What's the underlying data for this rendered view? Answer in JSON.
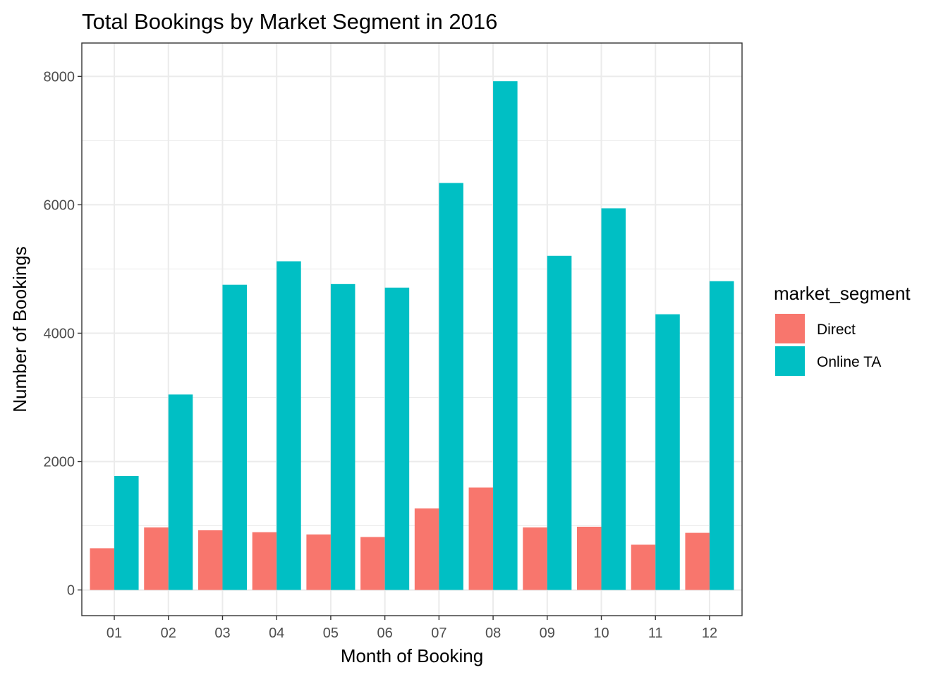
{
  "chart_data": {
    "type": "bar",
    "title": "Total Bookings by Market Segment in 2016",
    "xlabel": "Month of Booking",
    "ylabel": "Number of Bookings",
    "categories": [
      "01",
      "02",
      "03",
      "04",
      "05",
      "06",
      "07",
      "08",
      "09",
      "10",
      "11",
      "12"
    ],
    "series": [
      {
        "name": "Direct",
        "color": "#F8766D",
        "values": [
          650,
          975,
          930,
          900,
          865,
          825,
          1270,
          1595,
          975,
          985,
          705,
          890
        ]
      },
      {
        "name": "Online TA",
        "color": "#00BFC4",
        "values": [
          1775,
          3045,
          4755,
          5120,
          4765,
          4710,
          6340,
          7925,
          5205,
          5945,
          4295,
          4810
        ]
      }
    ],
    "ylim": [
      -400,
      8520
    ],
    "yticks": [
      0,
      2000,
      4000,
      6000,
      8000
    ],
    "yticks_labels": [
      "0",
      "2000",
      "4000",
      "6000",
      "8000"
    ],
    "grid": true,
    "legend_title": "market_segment",
    "legend_position": "right",
    "bar_layout": "dodge"
  }
}
